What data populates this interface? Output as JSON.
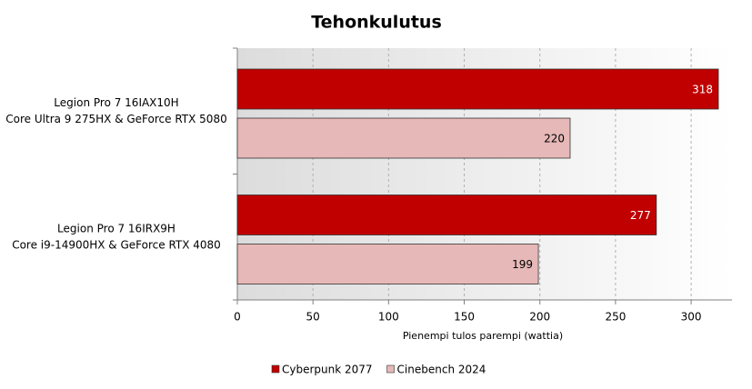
{
  "chart_data": {
    "type": "hbar",
    "title": "Tehonkulutus",
    "categories": [
      [
        "Legion Pro 7 16IAX10H",
        "Core Ultra 9 275HX & GeForce RTX 5080"
      ],
      [
        "Legion Pro 7 16IRX9H",
        "Core i9-14900HX & GeForce RTX 4080"
      ]
    ],
    "series": [
      {
        "name": "Cyberpunk 2077",
        "color": "#c00000",
        "values": [
          318,
          277
        ]
      },
      {
        "name": "Cinebench 2024",
        "color": "#e6b8b7",
        "values": [
          220,
          199
        ]
      }
    ],
    "xlabel": "Pienempi tulos parempi (wattia)",
    "xlim": [
      0,
      327
    ],
    "xticks": [
      0,
      50,
      100,
      150,
      200,
      250,
      300
    ],
    "grid": true,
    "legend": "bottom"
  }
}
